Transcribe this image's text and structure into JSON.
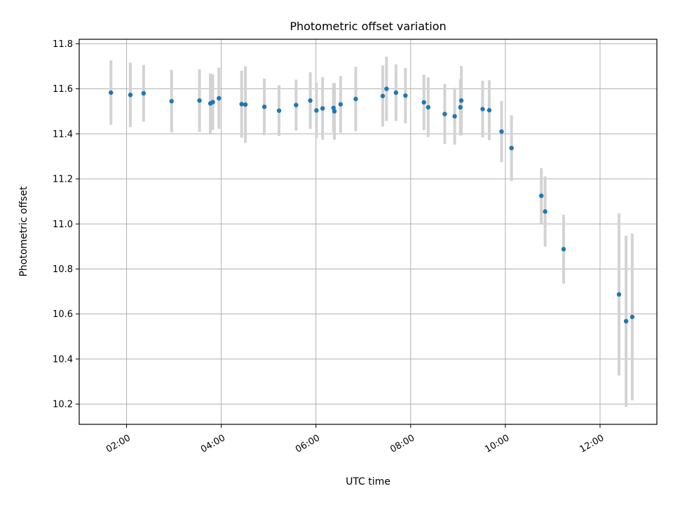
{
  "chart_data": {
    "type": "scatter",
    "title": "Photometric offset variation",
    "xlabel": "UTC time",
    "ylabel": "Photometric offset",
    "xlim_hours": [
      1.0,
      13.2
    ],
    "ylim": [
      10.11,
      11.82
    ],
    "grid": true,
    "x_ticks": [
      {
        "hour": 2,
        "label": "02:00"
      },
      {
        "hour": 4,
        "label": "04:00"
      },
      {
        "hour": 6,
        "label": "06:00"
      },
      {
        "hour": 8,
        "label": "08:00"
      },
      {
        "hour": 10,
        "label": "10:00"
      },
      {
        "hour": 12,
        "label": "12:00"
      }
    ],
    "y_ticks": [
      {
        "value": 10.2,
        "label": "10.2"
      },
      {
        "value": 10.4,
        "label": "10.4"
      },
      {
        "value": 10.6,
        "label": "10.6"
      },
      {
        "value": 10.8,
        "label": "10.8"
      },
      {
        "value": 11.0,
        "label": "11.0"
      },
      {
        "value": 11.2,
        "label": "11.2"
      },
      {
        "value": 11.4,
        "label": "11.4"
      },
      {
        "value": 11.6,
        "label": "11.6"
      },
      {
        "value": 11.8,
        "label": "11.8"
      }
    ],
    "series": [
      {
        "name": "offset",
        "marker_color": "#1f77b4",
        "errorbar_color": "#d3d3d3",
        "points": [
          {
            "x": 1.67,
            "y": 11.583,
            "err": 0.143
          },
          {
            "x": 2.08,
            "y": 11.573,
            "err": 0.143
          },
          {
            "x": 2.36,
            "y": 11.58,
            "err": 0.126
          },
          {
            "x": 2.95,
            "y": 11.545,
            "err": 0.139
          },
          {
            "x": 3.54,
            "y": 11.548,
            "err": 0.139
          },
          {
            "x": 3.77,
            "y": 11.535,
            "err": 0.133
          },
          {
            "x": 3.82,
            "y": 11.541,
            "err": 0.123
          },
          {
            "x": 3.95,
            "y": 11.558,
            "err": 0.136
          },
          {
            "x": 4.43,
            "y": 11.532,
            "err": 0.149
          },
          {
            "x": 4.51,
            "y": 11.53,
            "err": 0.17
          },
          {
            "x": 4.91,
            "y": 11.52,
            "err": 0.126
          },
          {
            "x": 5.22,
            "y": 11.503,
            "err": 0.113
          },
          {
            "x": 5.58,
            "y": 11.528,
            "err": 0.113
          },
          {
            "x": 5.88,
            "y": 11.548,
            "err": 0.126
          },
          {
            "x": 6.01,
            "y": 11.504,
            "err": 0.123
          },
          {
            "x": 6.14,
            "y": 11.513,
            "err": 0.139
          },
          {
            "x": 6.37,
            "y": 11.515,
            "err": 0.11
          },
          {
            "x": 6.39,
            "y": 11.5,
            "err": 0.126
          },
          {
            "x": 6.52,
            "y": 11.531,
            "err": 0.126
          },
          {
            "x": 6.84,
            "y": 11.555,
            "err": 0.143
          },
          {
            "x": 7.41,
            "y": 11.568,
            "err": 0.136
          },
          {
            "x": 7.49,
            "y": 11.6,
            "err": 0.143
          },
          {
            "x": 7.69,
            "y": 11.583,
            "err": 0.126
          },
          {
            "x": 7.89,
            "y": 11.57,
            "err": 0.123
          },
          {
            "x": 8.28,
            "y": 11.54,
            "err": 0.123
          },
          {
            "x": 8.37,
            "y": 11.518,
            "err": 0.133
          },
          {
            "x": 8.72,
            "y": 11.488,
            "err": 0.133
          },
          {
            "x": 8.93,
            "y": 11.478,
            "err": 0.126
          },
          {
            "x": 9.05,
            "y": 11.518,
            "err": 0.126
          },
          {
            "x": 9.07,
            "y": 11.548,
            "err": 0.153
          },
          {
            "x": 9.52,
            "y": 11.51,
            "err": 0.126
          },
          {
            "x": 9.66,
            "y": 11.505,
            "err": 0.133
          },
          {
            "x": 9.92,
            "y": 11.41,
            "err": 0.136
          },
          {
            "x": 10.13,
            "y": 11.337,
            "err": 0.146
          },
          {
            "x": 10.76,
            "y": 11.125,
            "err": 0.123
          },
          {
            "x": 10.84,
            "y": 11.055,
            "err": 0.156
          },
          {
            "x": 11.23,
            "y": 10.888,
            "err": 0.153
          },
          {
            "x": 12.4,
            "y": 10.687,
            "err": 0.36
          },
          {
            "x": 12.55,
            "y": 10.568,
            "err": 0.38
          },
          {
            "x": 12.68,
            "y": 10.587,
            "err": 0.37
          }
        ]
      }
    ]
  }
}
